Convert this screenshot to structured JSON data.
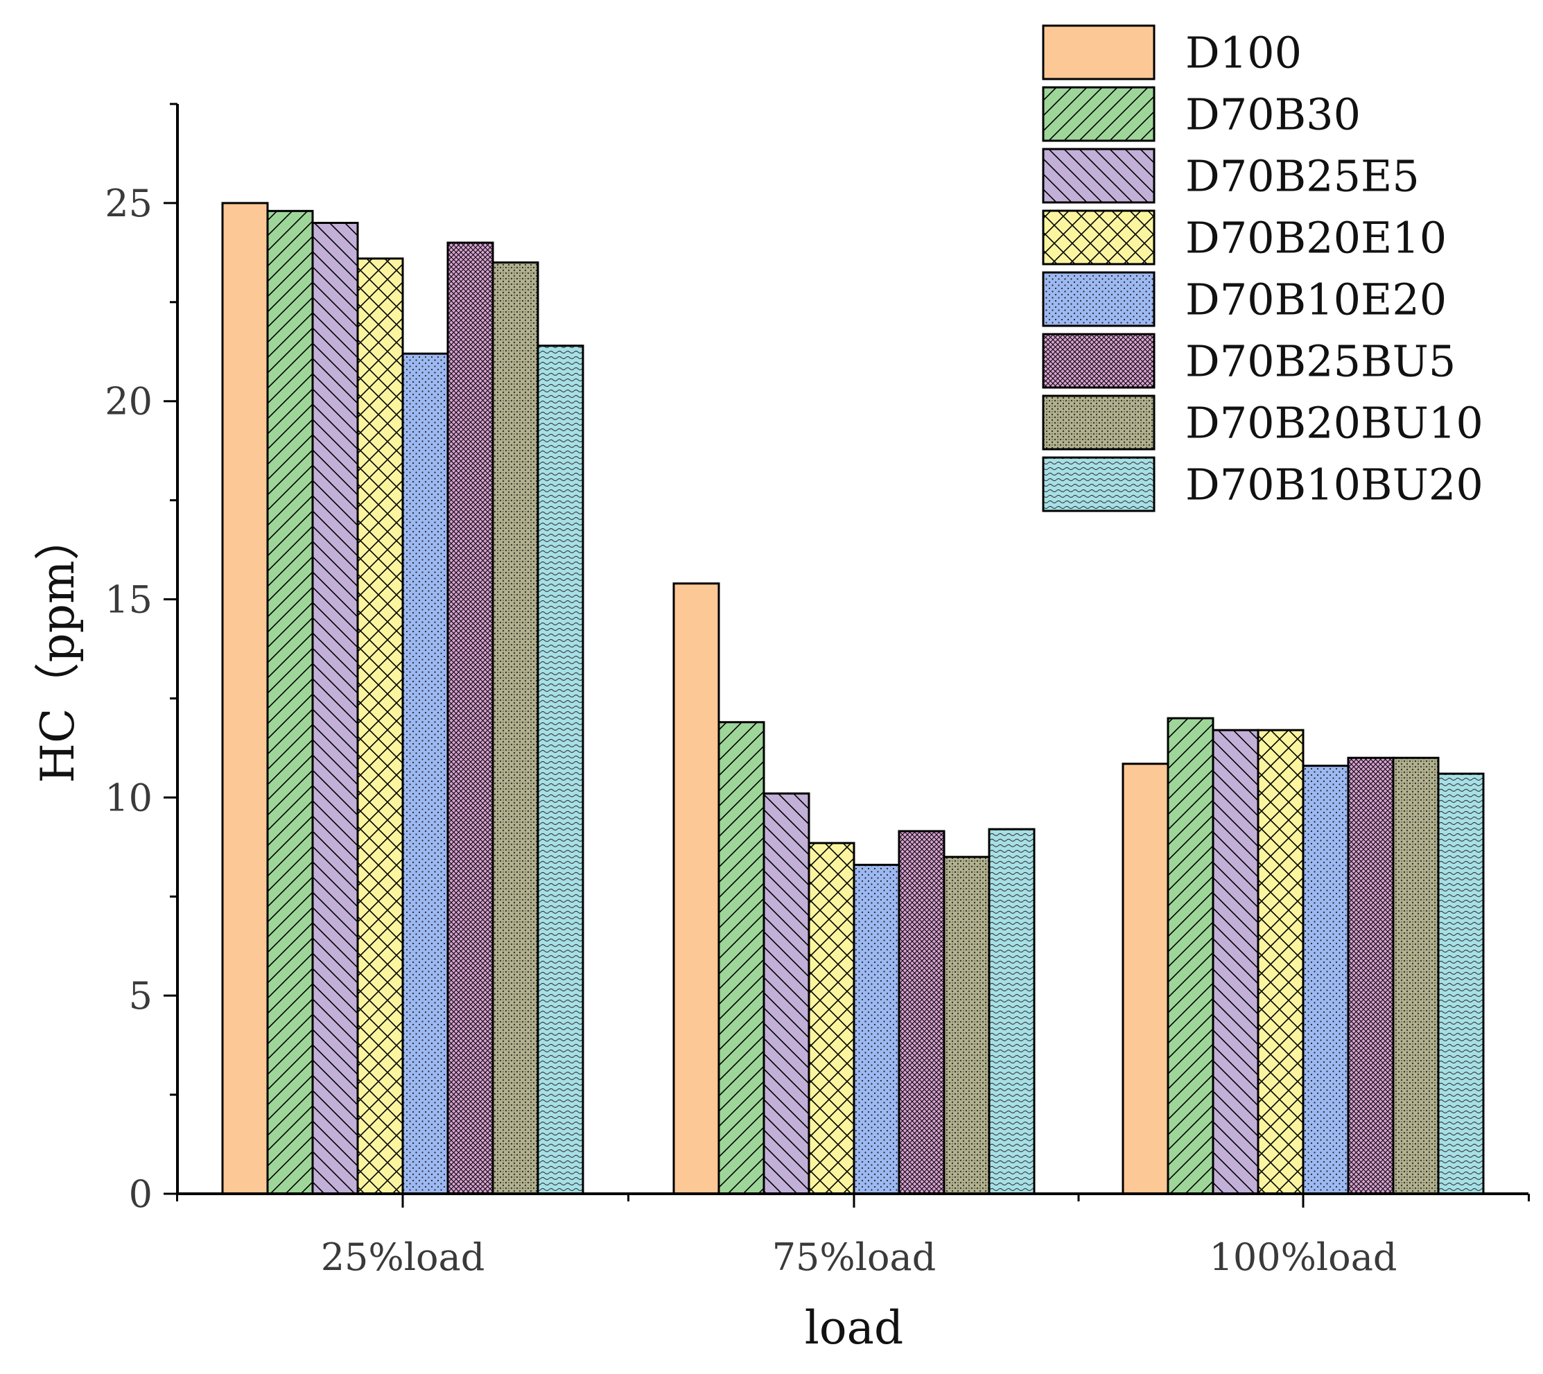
{
  "chart_data": {
    "type": "bar",
    "title": "",
    "xlabel": "load",
    "ylabel": "HC（ppm）",
    "categories": [
      "25%load",
      "75%load",
      "100%load"
    ],
    "ylim": [
      0,
      27.5
    ],
    "yticks": [
      0,
      5,
      10,
      15,
      20,
      25
    ],
    "grid": false,
    "legend_position": "top-right",
    "series": [
      {
        "name": "D100",
        "values": [
          25.0,
          15.4,
          10.85
        ],
        "color": "#FCC896",
        "pattern": "solid"
      },
      {
        "name": "D70B30",
        "values": [
          24.8,
          11.9,
          12.0
        ],
        "color": "#9ED69A",
        "pattern": "forward-diagonal"
      },
      {
        "name": "D70B25E5",
        "values": [
          24.5,
          10.1,
          11.7
        ],
        "color": "#C2B0D8",
        "pattern": "backward-diagonal"
      },
      {
        "name": "D70B20E10",
        "values": [
          23.6,
          8.85,
          11.7
        ],
        "color": "#FBF5A0",
        "pattern": "crosshatch"
      },
      {
        "name": "D70B10E20",
        "values": [
          21.2,
          8.3,
          10.8
        ],
        "color": "#9DB9F2",
        "pattern": "dots"
      },
      {
        "name": "D70B25BU5",
        "values": [
          24.0,
          9.15,
          11.0
        ],
        "color": "#D9A2D3",
        "pattern": "fine-grid"
      },
      {
        "name": "D70B20BU10",
        "values": [
          23.5,
          8.5,
          11.0
        ],
        "color": "#B2B28E",
        "pattern": "stipple"
      },
      {
        "name": "D70B10BU20",
        "values": [
          21.4,
          9.2,
          10.6
        ],
        "color": "#A6E0E6",
        "pattern": "waves"
      }
    ]
  }
}
